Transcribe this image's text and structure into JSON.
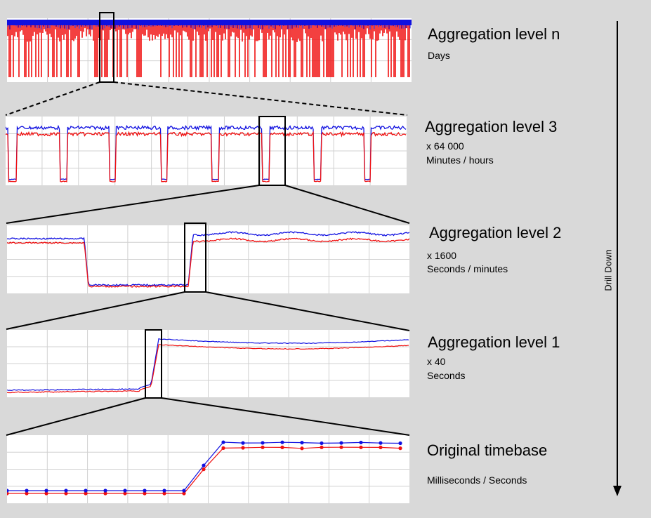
{
  "levels": [
    {
      "title": "Aggregation level n",
      "lines": [
        "Days"
      ]
    },
    {
      "title": "Aggregation level 3",
      "lines": [
        "x 64 000",
        "Minutes / hours"
      ]
    },
    {
      "title": "Aggregation level 2",
      "lines": [
        "x 1600",
        "Seconds / minutes"
      ]
    },
    {
      "title": "Aggregation level 1",
      "lines": [
        "x 40",
        "Seconds"
      ]
    },
    {
      "title": "Original timebase",
      "lines": [
        "Milliseconds / Seconds"
      ]
    }
  ],
  "drill_label": "Drill Down",
  "colors": {
    "background": "#d9d9d9",
    "series_upper": "#1010e0",
    "series_lower": "#f01010",
    "grid": "#d0d0d0",
    "frame": "#000000"
  }
}
